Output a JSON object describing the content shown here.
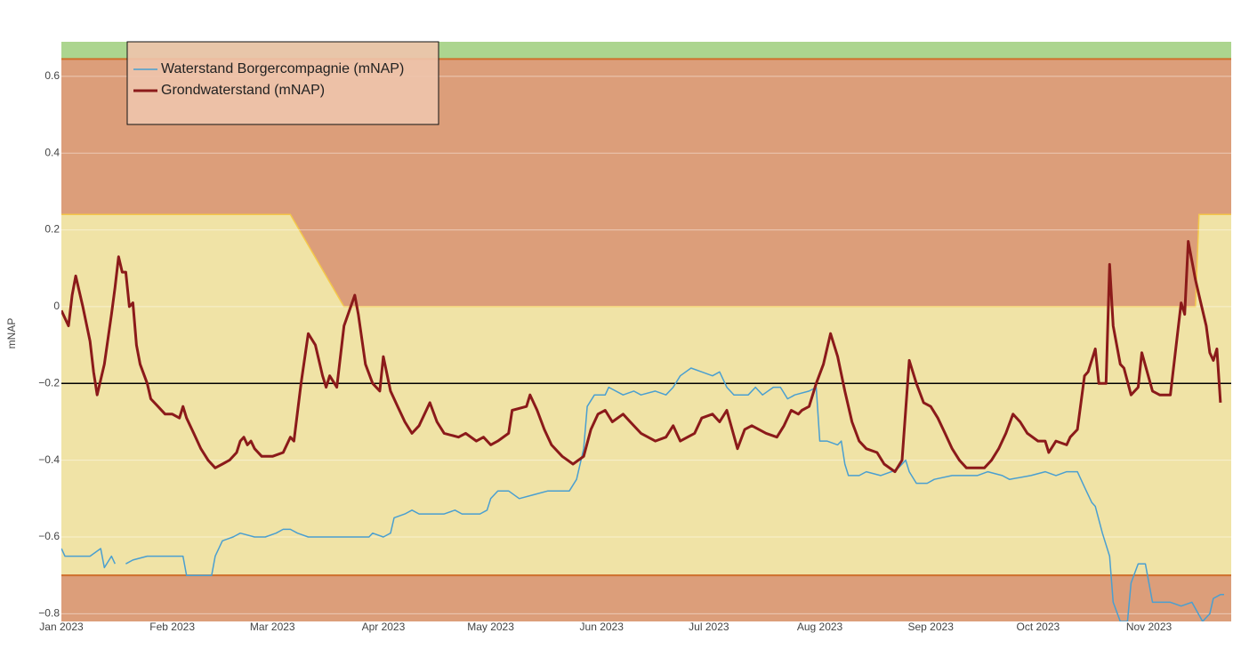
{
  "chart_data": {
    "type": "line",
    "y_label": "mNAP",
    "xlim": [
      0,
      327
    ],
    "xticks": [
      {
        "value": 0,
        "label": "Jan 2023"
      },
      {
        "value": 31,
        "label": "Feb 2023"
      },
      {
        "value": 59,
        "label": "Mar 2023"
      },
      {
        "value": 90,
        "label": "Apr 2023"
      },
      {
        "value": 120,
        "label": "May 2023"
      },
      {
        "value": 151,
        "label": "Jun 2023"
      },
      {
        "value": 181,
        "label": "Jul 2023"
      },
      {
        "value": 212,
        "label": "Aug 2023"
      },
      {
        "value": 243,
        "label": "Sep 2023"
      },
      {
        "value": 273,
        "label": "Oct 2023"
      },
      {
        "value": 304,
        "label": "Nov 2023"
      }
    ],
    "ylim": [
      -0.82,
      0.69
    ],
    "yticks": [
      {
        "value": -0.8,
        "label": "−0.8"
      },
      {
        "value": -0.6,
        "label": "−0.6"
      },
      {
        "value": -0.4,
        "label": "−0.4"
      },
      {
        "value": -0.2,
        "label": "−0.2"
      },
      0,
      0.2,
      0.4,
      0.6
    ],
    "grid": true,
    "legend_position": "upper left",
    "reference_line": {
      "value": -0.2,
      "color": "#000000"
    },
    "zones": {
      "top": 0.645,
      "bottom": -0.7,
      "upper_x": [
        0,
        64,
        79,
        317,
        318,
        327
      ],
      "upper_values": [
        0.24,
        0.24,
        0,
        0,
        0.24,
        0.24
      ],
      "green": "#acd58f",
      "red": "#dc9e7a",
      "yellow": "#f0e3a6",
      "edge": "#cf6f2c",
      "upper_edge": "#f4c84a"
    },
    "series": [
      {
        "name": "Waterstand Borgercompagnie (mNAP)",
        "color": "#4a9fd0",
        "width": 1.5,
        "x": [
          0,
          1,
          8,
          11,
          12,
          14,
          15,
          16,
          18,
          20,
          24,
          34,
          35,
          42,
          43,
          45,
          48,
          50,
          54,
          57,
          60,
          62,
          64,
          66,
          69,
          82,
          86,
          87,
          90,
          92,
          93,
          96,
          98,
          100,
          107,
          110,
          112,
          117,
          119,
          120,
          122,
          125,
          128,
          132,
          136,
          142,
          144,
          146,
          147,
          149,
          152,
          153,
          157,
          160,
          162,
          166,
          169,
          171,
          173,
          176,
          179,
          182,
          184,
          186,
          188,
          192,
          194,
          196,
          199,
          201,
          203,
          205,
          209,
          211,
          212,
          214,
          217,
          218,
          219,
          220,
          223,
          225,
          229,
          232,
          234,
          236,
          237,
          239,
          242,
          244,
          249,
          256,
          259,
          263,
          265,
          271,
          275,
          278,
          281,
          284,
          286,
          288,
          289,
          291,
          293,
          294,
          296,
          298,
          299,
          301,
          303,
          305,
          310,
          313,
          316,
          319,
          321,
          322,
          324,
          325
        ],
        "values": [
          -0.63,
          -0.65,
          -0.65,
          -0.63,
          -0.68,
          -0.65,
          -0.67,
          null,
          -0.67,
          -0.66,
          -0.65,
          -0.65,
          -0.7,
          -0.7,
          -0.65,
          -0.61,
          -0.6,
          -0.59,
          -0.6,
          -0.6,
          -0.59,
          -0.58,
          -0.58,
          -0.59,
          -0.6,
          -0.6,
          -0.6,
          -0.59,
          -0.6,
          -0.59,
          -0.55,
          -0.54,
          -0.53,
          -0.54,
          -0.54,
          -0.53,
          -0.54,
          -0.54,
          -0.53,
          -0.5,
          -0.48,
          -0.48,
          -0.5,
          -0.49,
          -0.48,
          -0.48,
          -0.45,
          -0.37,
          -0.26,
          -0.23,
          -0.23,
          -0.21,
          -0.23,
          -0.22,
          -0.23,
          -0.22,
          -0.23,
          -0.21,
          -0.18,
          -0.16,
          -0.17,
          -0.18,
          -0.17,
          -0.21,
          -0.23,
          -0.23,
          -0.21,
          -0.23,
          -0.21,
          -0.21,
          -0.24,
          -0.23,
          -0.22,
          -0.21,
          -0.35,
          -0.35,
          -0.36,
          -0.35,
          -0.41,
          -0.44,
          -0.44,
          -0.43,
          -0.44,
          -0.43,
          -0.42,
          -0.4,
          -0.43,
          -0.46,
          -0.46,
          -0.45,
          -0.44,
          -0.44,
          -0.43,
          -0.44,
          -0.45,
          -0.44,
          -0.43,
          -0.44,
          -0.43,
          -0.43,
          -0.47,
          -0.51,
          -0.52,
          -0.59,
          -0.65,
          -0.77,
          -0.82,
          -0.82,
          -0.72,
          -0.67,
          -0.67,
          -0.77,
          -0.77,
          -0.78,
          -0.77,
          -0.82,
          -0.8,
          -0.76,
          -0.75,
          -0.75
        ]
      },
      {
        "name": "Grondwaterstand (mNAP)",
        "color": "#8b1a1a",
        "width": 3,
        "x": [
          0,
          2,
          3,
          4,
          6,
          8,
          9,
          10,
          12,
          14,
          15,
          16,
          17,
          18,
          19,
          20,
          21,
          22,
          24,
          25,
          27,
          29,
          31,
          33,
          34,
          35,
          37,
          39,
          41,
          43,
          45,
          47,
          49,
          50,
          51,
          52,
          53,
          54,
          56,
          59,
          62,
          64,
          65,
          67,
          69,
          71,
          73,
          74,
          75,
          77,
          79,
          82,
          83,
          85,
          87,
          89,
          90,
          92,
          94,
          96,
          98,
          100,
          102,
          103,
          105,
          107,
          111,
          113,
          116,
          118,
          120,
          122,
          125,
          126,
          130,
          131,
          133,
          135,
          137,
          140,
          143,
          146,
          148,
          150,
          152,
          154,
          157,
          159,
          162,
          166,
          169,
          171,
          173,
          177,
          179,
          182,
          184,
          186,
          189,
          191,
          193,
          197,
          200,
          202,
          204,
          206,
          207,
          209,
          211,
          213,
          215,
          217,
          219,
          221,
          223,
          225,
          228,
          230,
          233,
          235,
          237,
          239,
          241,
          243,
          245,
          247,
          249,
          251,
          253,
          258,
          260,
          262,
          264,
          266,
          268,
          270,
          273,
          275,
          276,
          278,
          281,
          282,
          284,
          286,
          287,
          289,
          290,
          292,
          293,
          294,
          296,
          297,
          299,
          301,
          302,
          305,
          307,
          310,
          313,
          314,
          315,
          317,
          318,
          320,
          321,
          322,
          323,
          324
        ],
        "values": [
          -0.01,
          -0.05,
          0.03,
          0.08,
          0.0,
          -0.09,
          -0.17,
          -0.23,
          -0.15,
          -0.02,
          0.05,
          0.13,
          0.09,
          0.09,
          0.0,
          0.01,
          -0.1,
          -0.15,
          -0.2,
          -0.24,
          -0.26,
          -0.28,
          -0.28,
          -0.29,
          -0.26,
          -0.29,
          -0.33,
          -0.37,
          -0.4,
          -0.42,
          -0.41,
          -0.4,
          -0.38,
          -0.35,
          -0.34,
          -0.36,
          -0.35,
          -0.37,
          -0.39,
          -0.39,
          -0.38,
          -0.34,
          -0.35,
          -0.2,
          -0.07,
          -0.1,
          -0.18,
          -0.21,
          -0.18,
          -0.21,
          -0.05,
          0.03,
          -0.02,
          -0.15,
          -0.2,
          -0.22,
          -0.13,
          -0.22,
          -0.26,
          -0.3,
          -0.33,
          -0.31,
          -0.27,
          -0.25,
          -0.3,
          -0.33,
          -0.34,
          -0.33,
          -0.35,
          -0.34,
          -0.36,
          -0.35,
          -0.33,
          -0.27,
          -0.26,
          -0.23,
          -0.27,
          -0.32,
          -0.36,
          -0.39,
          -0.41,
          -0.39,
          -0.32,
          -0.28,
          -0.27,
          -0.3,
          -0.28,
          -0.3,
          -0.33,
          -0.35,
          -0.34,
          -0.31,
          -0.35,
          -0.33,
          -0.29,
          -0.28,
          -0.3,
          -0.27,
          -0.37,
          -0.32,
          -0.31,
          -0.33,
          -0.34,
          -0.31,
          -0.27,
          -0.28,
          -0.27,
          -0.26,
          -0.2,
          -0.15,
          -0.07,
          -0.13,
          -0.22,
          -0.3,
          -0.35,
          -0.37,
          -0.38,
          -0.41,
          -0.43,
          -0.4,
          -0.14,
          -0.2,
          -0.25,
          -0.26,
          -0.29,
          -0.33,
          -0.37,
          -0.4,
          -0.42,
          -0.42,
          -0.4,
          -0.37,
          -0.33,
          -0.28,
          -0.3,
          -0.33,
          -0.35,
          -0.35,
          -0.38,
          -0.35,
          -0.36,
          -0.34,
          -0.32,
          -0.18,
          -0.17,
          -0.11,
          -0.2,
          -0.2,
          0.11,
          -0.05,
          -0.15,
          -0.16,
          -0.23,
          -0.21,
          -0.12,
          -0.22,
          -0.23,
          -0.23,
          0.01,
          -0.02,
          0.17,
          0.07,
          0.03,
          -0.05,
          -0.12,
          -0.14,
          -0.11,
          -0.25
        ]
      }
    ]
  }
}
